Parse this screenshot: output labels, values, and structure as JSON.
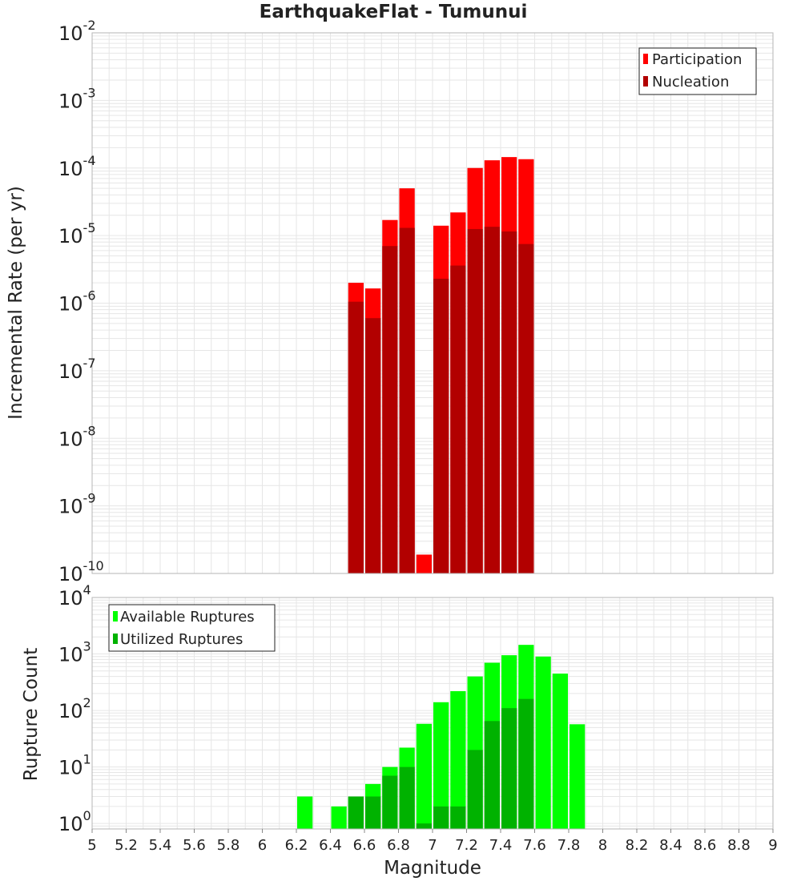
{
  "title": "EarthquakeFlat - Tumunui",
  "colors": {
    "participation": "#ff0000",
    "nucleation": "#b20000",
    "available": "#00ff00",
    "utilized": "#00b200",
    "grid": "#e6e6e6",
    "frame": "#b5b5b5"
  },
  "chart_data": [
    {
      "type": "bar",
      "ylabel": "Incremental Rate (per yr)",
      "yscale": "log",
      "ylim": [
        1e-10,
        0.01
      ],
      "xlim": [
        5,
        9
      ],
      "grid": true,
      "legend_position": "top-right",
      "y_tick_exponents": [
        "-10",
        "-9",
        "-8",
        "-7",
        "-6",
        "-5",
        "-4",
        "-3",
        "-2"
      ],
      "bin_width": 0.1,
      "series": [
        {
          "name": "Participation",
          "x": [
            6.55,
            6.65,
            6.75,
            6.85,
            6.95,
            7.05,
            7.15,
            7.25,
            7.35,
            7.45,
            7.55
          ],
          "values": [
            2e-06,
            1.65e-06,
            1.7e-05,
            5e-05,
            1.9e-10,
            1.4e-05,
            2.2e-05,
            0.0001,
            0.00013,
            0.000145,
            0.000135
          ]
        },
        {
          "name": "Nucleation",
          "x": [
            6.55,
            6.65,
            6.75,
            6.85,
            6.95,
            7.05,
            7.15,
            7.25,
            7.35,
            7.45,
            7.55
          ],
          "values": [
            1.05e-06,
            6e-07,
            7e-06,
            1.3e-05,
            null,
            2.3e-06,
            3.6e-06,
            1.25e-05,
            1.35e-05,
            1.15e-05,
            7.5e-06
          ]
        }
      ]
    },
    {
      "type": "bar",
      "xlabel": "Magnitude",
      "ylabel": "Rupture Count",
      "yscale": "log",
      "ylim": [
        0.8,
        10000
      ],
      "xlim": [
        5,
        9
      ],
      "grid": true,
      "legend_position": "top-left",
      "y_tick_exponents": [
        "0",
        "1",
        "2",
        "3",
        "4"
      ],
      "x_tick_labels": [
        "5",
        "5.2",
        "5.4",
        "5.6",
        "5.8",
        "6",
        "6.2",
        "6.4",
        "6.6",
        "6.8",
        "7",
        "7.2",
        "7.4",
        "7.6",
        "7.8",
        "8",
        "8.2",
        "8.4",
        "8.6",
        "8.8",
        "9"
      ],
      "bin_width": 0.1,
      "series": [
        {
          "name": "Available Ruptures",
          "x": [
            6.25,
            6.45,
            6.55,
            6.65,
            6.75,
            6.85,
            6.95,
            7.05,
            7.15,
            7.25,
            7.35,
            7.45,
            7.55,
            7.65,
            7.75,
            7.85
          ],
          "values": [
            3,
            2,
            3,
            5,
            10,
            22,
            58,
            140,
            220,
            400,
            700,
            950,
            1450,
            900,
            450,
            57
          ]
        },
        {
          "name": "Utilized Ruptures",
          "x": [
            6.25,
            6.45,
            6.55,
            6.65,
            6.75,
            6.85,
            6.95,
            7.05,
            7.15,
            7.25,
            7.35,
            7.45,
            7.55,
            7.65,
            7.75,
            7.85
          ],
          "values": [
            null,
            null,
            3,
            3,
            7,
            10,
            1,
            2,
            2,
            20,
            65,
            110,
            160,
            null,
            null,
            null
          ]
        }
      ]
    }
  ]
}
